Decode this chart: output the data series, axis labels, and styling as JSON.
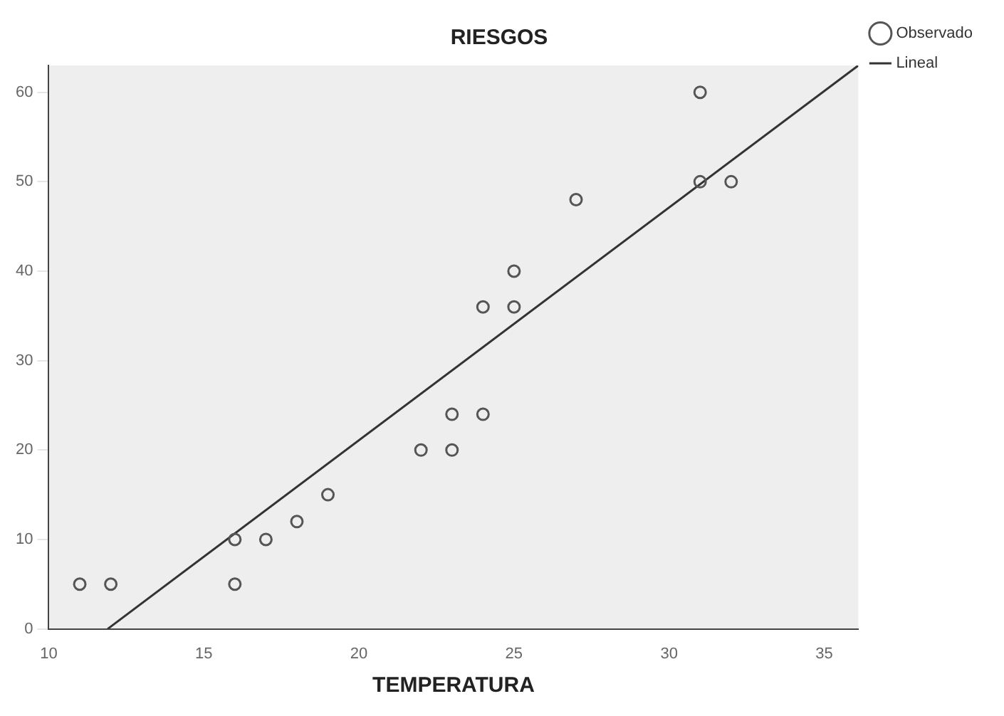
{
  "chart_data": {
    "type": "scatter",
    "title": "RIESGOS",
    "xlabel": "TEMPERATURA",
    "xlim": [
      10,
      36.1
    ],
    "ylim": [
      0,
      63
    ],
    "xticks": [
      10,
      15,
      20,
      25,
      30,
      35
    ],
    "yticks": [
      0,
      10,
      20,
      30,
      40,
      50,
      60
    ],
    "grid": false,
    "legend": "top right",
    "series": [
      {
        "name": "Observado",
        "color": "#555555",
        "marker": "circle",
        "x": [
          11,
          12,
          16,
          16,
          17,
          18,
          19,
          22,
          23,
          23,
          24,
          24,
          25,
          25,
          27,
          31,
          32,
          31
        ],
        "values": [
          5,
          5,
          5,
          10,
          10,
          12,
          15,
          20,
          20,
          24,
          24,
          36,
          36,
          40,
          48,
          50,
          50,
          60
        ]
      },
      {
        "name": "Lineal",
        "type": "line",
        "color": "#333333",
        "marker": "none",
        "x": [
          11.9,
          36.1
        ],
        "values": [
          0,
          63
        ]
      }
    ]
  }
}
